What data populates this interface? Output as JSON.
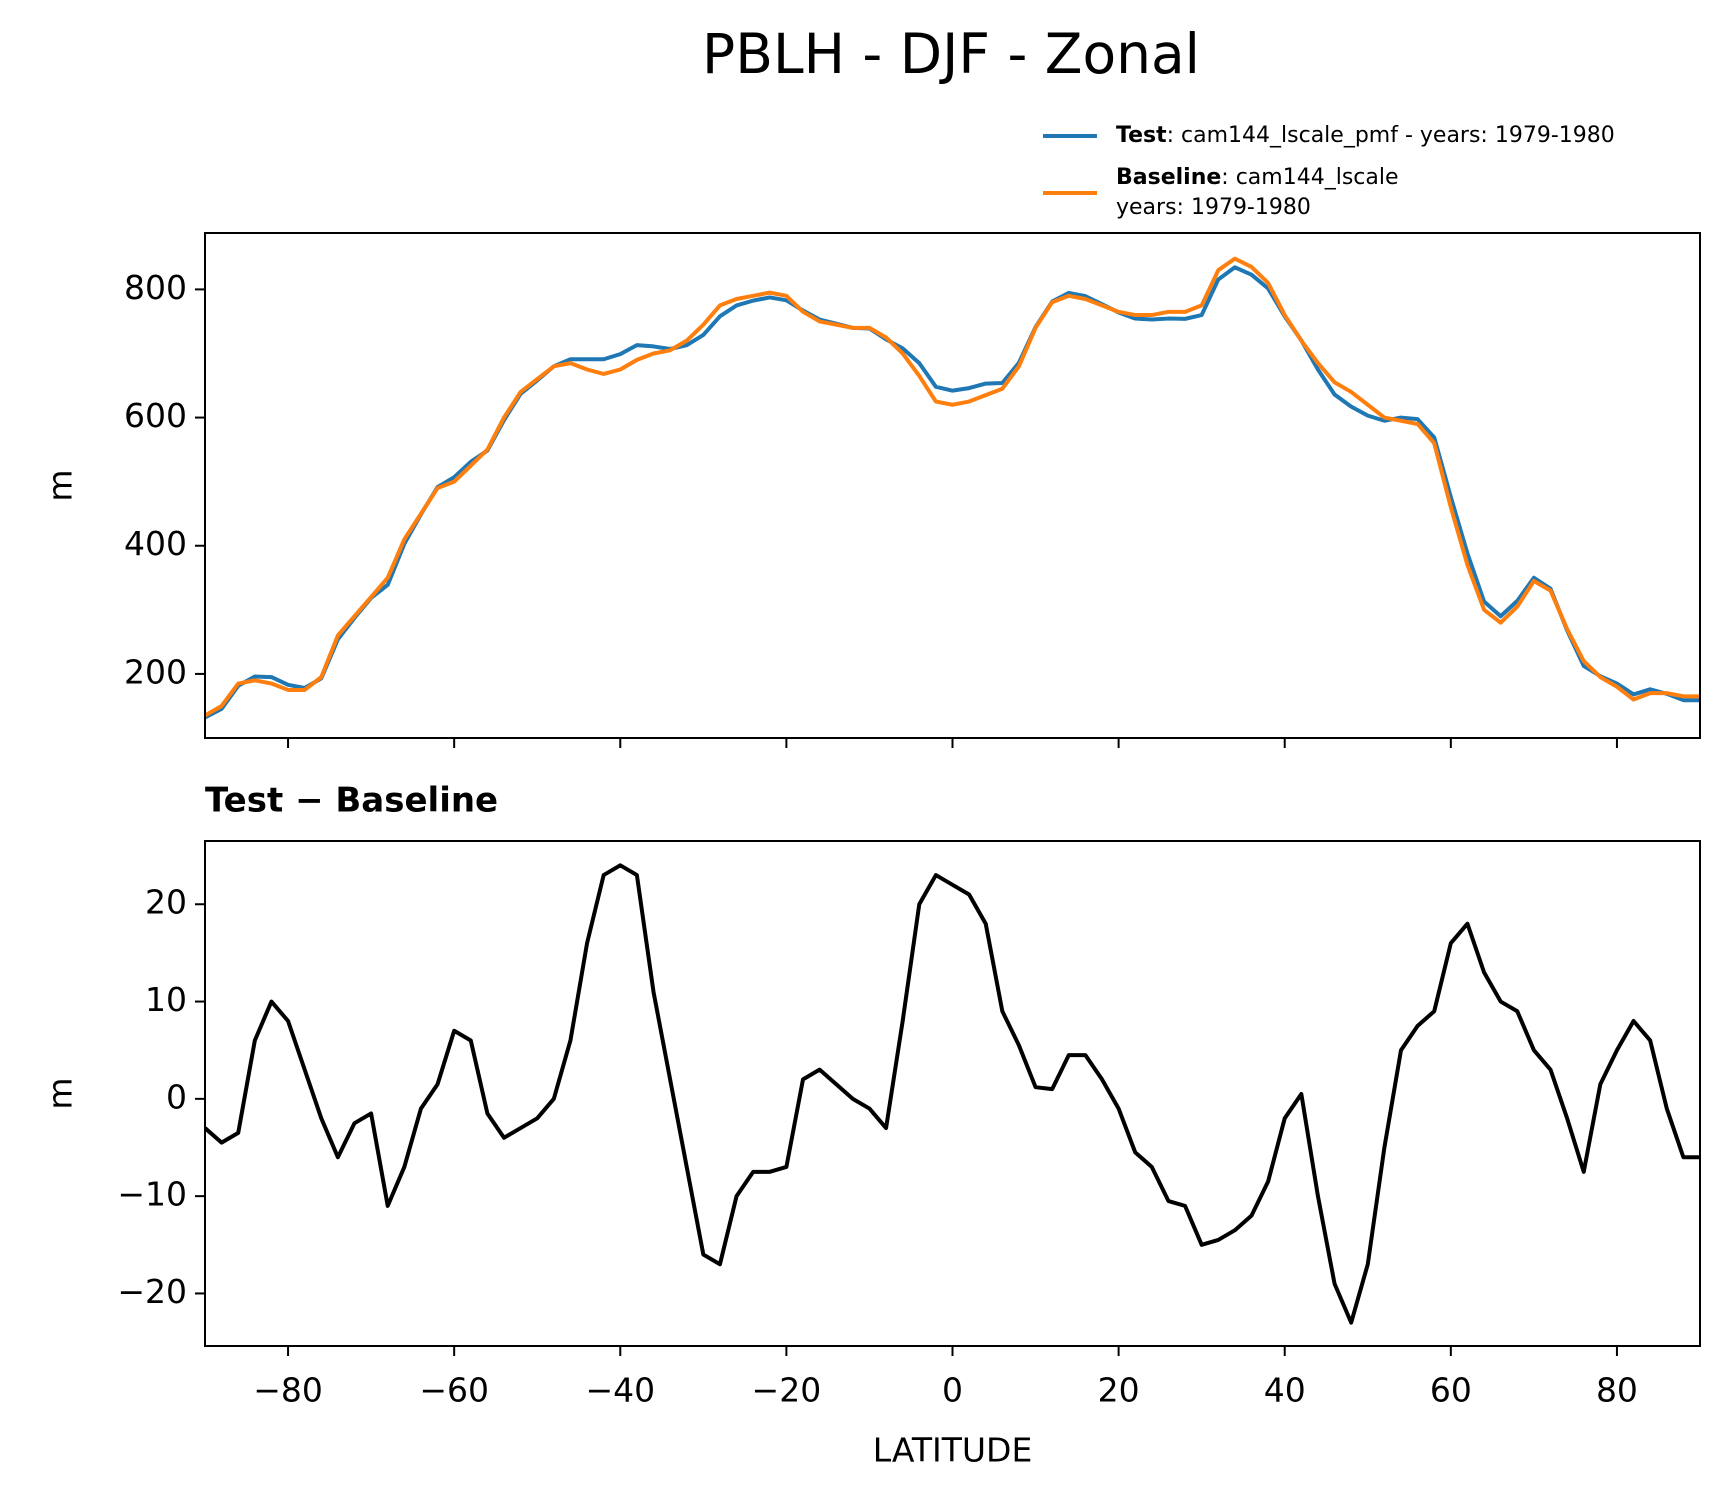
{
  "title": "PBLH - DJF - Zonal",
  "chart_data": [
    {
      "type": "line",
      "ylabel": "m",
      "x": [
        -90,
        -88,
        -86,
        -84,
        -82,
        -80,
        -78,
        -76,
        -74,
        -72,
        -70,
        -68,
        -66,
        -64,
        -62,
        -60,
        -58,
        -56,
        -54,
        -52,
        -50,
        -48,
        -46,
        -44,
        -42,
        -40,
        -38,
        -36,
        -34,
        -32,
        -30,
        -28,
        -26,
        -24,
        -22,
        -20,
        -18,
        -16,
        -14,
        -12,
        -10,
        -8,
        -6,
        -4,
        -2,
        0,
        2,
        4,
        6,
        8,
        10,
        12,
        14,
        16,
        18,
        20,
        22,
        24,
        26,
        28,
        30,
        32,
        34,
        36,
        38,
        40,
        42,
        44,
        46,
        48,
        50,
        52,
        54,
        56,
        58,
        60,
        62,
        64,
        66,
        68,
        70,
        72,
        74,
        76,
        78,
        80,
        82,
        84,
        86,
        88,
        90
      ],
      "series": [
        {
          "name": "Test",
          "legend_text": [
            ": cam144_lscale_pmf - years: 1979-1980"
          ],
          "color": "#1f77b4",
          "values": [
            132,
            145.5,
            181.5,
            196,
            195,
            183,
            178,
            193,
            254,
            287.5,
            318.5,
            339,
            403,
            449,
            491.5,
            507,
            531,
            548.5,
            596,
            637,
            658,
            680,
            691,
            691,
            691,
            699,
            713,
            711,
            707,
            713,
            729,
            758,
            775,
            782.5,
            787.5,
            783,
            767,
            753,
            746.5,
            740,
            739,
            722,
            708,
            685,
            648,
            642,
            646,
            653,
            654,
            685.5,
            741.2,
            781,
            794.5,
            789.5,
            777,
            764,
            754.5,
            753,
            754.5,
            754,
            760,
            815.5,
            834.5,
            823,
            801.5,
            758,
            720.5,
            675,
            636,
            617,
            603,
            595,
            600,
            597.5,
            569,
            476,
            388,
            313,
            290,
            314,
            350,
            333,
            268,
            212.5,
            196.5,
            185,
            168,
            176,
            169,
            159,
            159
          ]
        },
        {
          "name": "Baseline",
          "legend_text": [
            ": cam144_lscale",
            "years: 1979-1980"
          ],
          "color": "#ff7f0e",
          "values": [
            135,
            150,
            185,
            190,
            185,
            175,
            175,
            195,
            260,
            290,
            320,
            350,
            410,
            450,
            490,
            500,
            525,
            550,
            600,
            640,
            660,
            680,
            685,
            675,
            668,
            675,
            690,
            700,
            705,
            720,
            745,
            775,
            785,
            790,
            795,
            790,
            765,
            750,
            745,
            740,
            740,
            725,
            700,
            665,
            625,
            620,
            625,
            635,
            645,
            680,
            740,
            780,
            790,
            785,
            775,
            765,
            760,
            760,
            765,
            765,
            775,
            830,
            848,
            835,
            810,
            760,
            720,
            685,
            655,
            640,
            620,
            600,
            595,
            590,
            560,
            460,
            370,
            300,
            280,
            305,
            345,
            330,
            270,
            220,
            195,
            180,
            160,
            170,
            170,
            165,
            165
          ]
        }
      ],
      "xlim": [
        -90,
        90
      ],
      "xticks": [
        -80,
        -60,
        -40,
        -20,
        0,
        20,
        40,
        60,
        80
      ],
      "ylim": [
        100,
        888
      ],
      "yticks": [
        200,
        400,
        600,
        800
      ]
    },
    {
      "type": "line",
      "title": "Test − Baseline",
      "ylabel": "m",
      "xlabel": "LATITUDE",
      "x": [
        -90,
        -88,
        -86,
        -84,
        -82,
        -80,
        -78,
        -76,
        -74,
        -72,
        -70,
        -68,
        -66,
        -64,
        -62,
        -60,
        -58,
        -56,
        -54,
        -52,
        -50,
        -48,
        -46,
        -44,
        -42,
        -40,
        -38,
        -36,
        -34,
        -32,
        -30,
        -28,
        -26,
        -24,
        -22,
        -20,
        -18,
        -16,
        -14,
        -12,
        -10,
        -8,
        -6,
        -4,
        -2,
        0,
        2,
        4,
        6,
        8,
        10,
        12,
        14,
        16,
        18,
        20,
        22,
        24,
        26,
        28,
        30,
        32,
        34,
        36,
        38,
        40,
        42,
        44,
        46,
        48,
        50,
        52,
        54,
        56,
        58,
        60,
        62,
        64,
        66,
        68,
        70,
        72,
        74,
        76,
        78,
        80,
        82,
        84,
        86,
        88,
        90
      ],
      "series": [
        {
          "name": "Test − Baseline",
          "color": "#000000",
          "values": [
            -3,
            -4.5,
            -3.5,
            6,
            10,
            8,
            3,
            -2,
            -6,
            -2.5,
            -1.5,
            -11,
            -7,
            -1,
            1.5,
            7,
            6,
            -1.5,
            -4,
            -3,
            -2,
            0,
            6,
            16,
            23,
            24,
            23,
            11,
            2,
            -7,
            -16,
            -17,
            -10,
            -7.5,
            -7.5,
            -7,
            2,
            3,
            1.5,
            0,
            -1,
            -3,
            8,
            20,
            23,
            22,
            21,
            18,
            9,
            5.5,
            1.2,
            1,
            4.5,
            4.5,
            2,
            -1,
            -5.5,
            -7,
            -10.5,
            -11,
            -15,
            -14.5,
            -13.5,
            -12,
            -8.5,
            -2,
            0.5,
            -10,
            -19,
            -23,
            -17,
            -5,
            5,
            7.5,
            9,
            16,
            18,
            13,
            10,
            9,
            5,
            3,
            -2,
            -7.5,
            1.5,
            5,
            8,
            6,
            -1,
            -6,
            -6
          ]
        }
      ],
      "xlim": [
        -90,
        90
      ],
      "xticks": [
        {
          "value": -80,
          "label": "−80"
        },
        {
          "value": -60,
          "label": "−60"
        },
        {
          "value": -40,
          "label": "−40"
        },
        {
          "value": -20,
          "label": "−20"
        },
        0,
        20,
        40,
        60,
        80
      ],
      "ylim": [
        -25.4,
        26.5
      ],
      "yticks": [
        {
          "value": -20,
          "label": "−20"
        },
        {
          "value": -10,
          "label": "−10"
        },
        0,
        10,
        20
      ]
    }
  ]
}
